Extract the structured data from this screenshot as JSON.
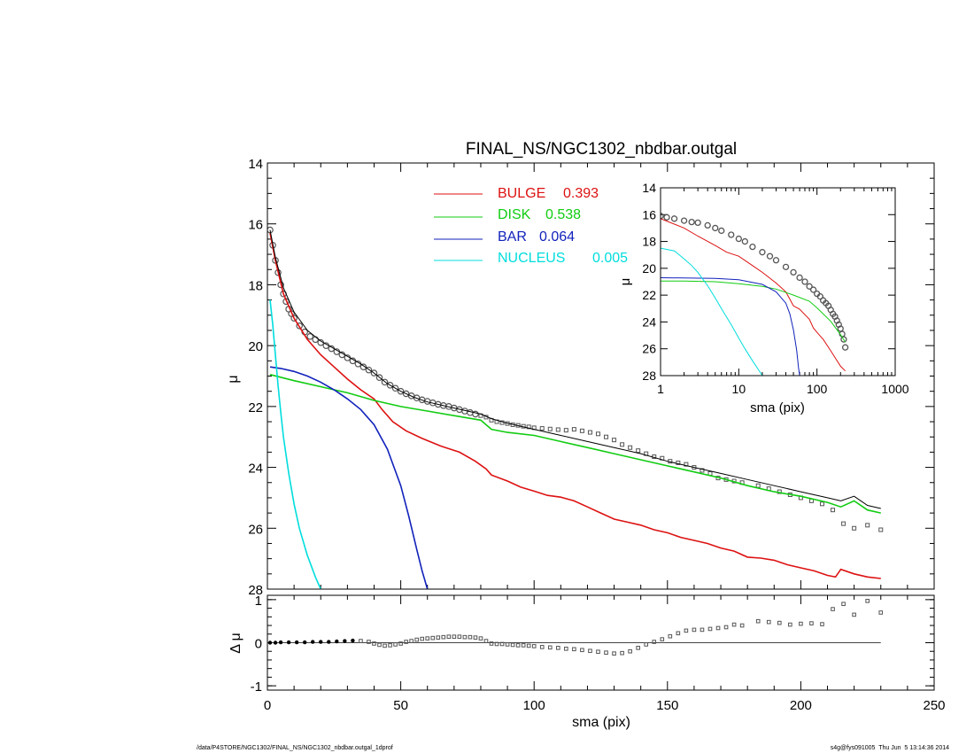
{
  "colors": {
    "axis": "#000000",
    "bulge": "#dd1111",
    "disk": "#11cc11",
    "bar": "#1122bb",
    "nucleus": "#00dddd",
    "total": "#000000",
    "obs": "#555555",
    "zero_line": "#444444"
  },
  "footer": {
    "left": "/data/P4STORE/NGC1302/FINAL_NS/NGC1302_nbdbar.outgal_1dprof",
    "right": "s4g@fys091005  Thu Jun  5 13:14:36 2014"
  },
  "chart_data": [
    {
      "id": "main",
      "type": "line",
      "title": "FINAL_NS/NGC1302_nbdbar.outgal",
      "xlabel": "",
      "ylabel": "μ",
      "xlim": [
        0,
        250
      ],
      "ylim": [
        28,
        14
      ],
      "ytick_labels": [
        "14",
        "16",
        "18",
        "20",
        "22",
        "24",
        "26",
        "28"
      ],
      "legend": [
        {
          "name": "BULGE",
          "value": "0.393",
          "color": "#dd1111"
        },
        {
          "name": "DISK",
          "value": "0.538",
          "color": "#11cc11"
        },
        {
          "name": "BAR",
          "value": "0.064",
          "color": "#1122bb"
        },
        {
          "name": "NUCLEUS",
          "value": "0.005",
          "color": "#00dddd"
        }
      ],
      "series": [
        {
          "name": "BULGE",
          "color": "#dd1111",
          "x": [
            1,
            3,
            6,
            10,
            15,
            20,
            25,
            30,
            35,
            40,
            43,
            47,
            52,
            58,
            65,
            72,
            78,
            82,
            84,
            90,
            95,
            100,
            105,
            110,
            115,
            120,
            125,
            130,
            135,
            140,
            145,
            150,
            155,
            160,
            165,
            170,
            175,
            180,
            185,
            190,
            195,
            200,
            205,
            210,
            213,
            215,
            220,
            225,
            230
          ],
          "y": [
            16.3,
            17.2,
            18.3,
            19.1,
            19.8,
            20.3,
            20.7,
            21.1,
            21.45,
            21.75,
            22.1,
            22.5,
            22.8,
            23.05,
            23.3,
            23.5,
            23.8,
            24.05,
            24.25,
            24.45,
            24.65,
            24.78,
            24.92,
            24.98,
            25.1,
            25.3,
            25.5,
            25.7,
            25.8,
            25.9,
            26.05,
            26.15,
            26.3,
            26.4,
            26.5,
            26.65,
            26.75,
            26.95,
            26.98,
            27.05,
            27.2,
            27.3,
            27.4,
            27.55,
            27.6,
            27.35,
            27.5,
            27.6,
            27.65
          ]
        },
        {
          "name": "DISK",
          "color": "#11cc11",
          "x": [
            1,
            10,
            20,
            30,
            40,
            50,
            60,
            70,
            80,
            82,
            84,
            90,
            100,
            110,
            120,
            130,
            140,
            150,
            160,
            170,
            180,
            190,
            200,
            210,
            215,
            220,
            225,
            230
          ],
          "y": [
            20.95,
            21.15,
            21.35,
            21.55,
            21.8,
            22.0,
            22.15,
            22.3,
            22.45,
            22.6,
            22.75,
            22.85,
            22.95,
            23.15,
            23.35,
            23.55,
            23.75,
            23.95,
            24.15,
            24.35,
            24.6,
            24.8,
            24.95,
            25.15,
            25.3,
            25.1,
            25.4,
            25.5
          ]
        },
        {
          "name": "BAR",
          "color": "#1122bb",
          "x": [
            1,
            5,
            10,
            15,
            20,
            25,
            30,
            35,
            40,
            45,
            50,
            53,
            56,
            58,
            60
          ],
          "y": [
            20.7,
            20.75,
            20.85,
            21.0,
            21.2,
            21.45,
            21.75,
            22.1,
            22.6,
            23.4,
            24.6,
            25.6,
            26.7,
            27.4,
            28.0
          ]
        },
        {
          "name": "NUCLEUS",
          "color": "#00dddd",
          "x": [
            1,
            2,
            3,
            4,
            5,
            6,
            8,
            10,
            12,
            15,
            18,
            20
          ],
          "y": [
            18.5,
            19.3,
            20.3,
            21.3,
            22.2,
            23.0,
            24.2,
            25.2,
            26.0,
            26.9,
            27.6,
            28.0
          ]
        },
        {
          "name": "TOTAL",
          "color": "#000000",
          "x": [
            1,
            3,
            6,
            10,
            15,
            20,
            25,
            30,
            35,
            40,
            45,
            50,
            55,
            60,
            65,
            70,
            75,
            80,
            84,
            90,
            100,
            110,
            120,
            130,
            140,
            150,
            160,
            170,
            180,
            190,
            200,
            210,
            215,
            220,
            225,
            230
          ],
          "y": [
            16.2,
            17.1,
            18.1,
            18.9,
            19.5,
            19.85,
            20.1,
            20.35,
            20.6,
            20.9,
            21.25,
            21.5,
            21.7,
            21.85,
            21.95,
            22.05,
            22.15,
            22.25,
            22.4,
            22.55,
            22.75,
            22.95,
            23.15,
            23.35,
            23.55,
            23.8,
            24.0,
            24.2,
            24.4,
            24.6,
            24.8,
            25.0,
            25.1,
            24.95,
            25.25,
            25.35
          ]
        }
      ],
      "observed": {
        "x": [
          1,
          2,
          3,
          4,
          5,
          6,
          7,
          8,
          9,
          10,
          12,
          14,
          16,
          18,
          20,
          22,
          24,
          26,
          28,
          30,
          32,
          34,
          36,
          38,
          40,
          42,
          44,
          46,
          48,
          50,
          52,
          54,
          56,
          58,
          60,
          62,
          64,
          66,
          68,
          70,
          72,
          74,
          76,
          78,
          80,
          82,
          84,
          86,
          88,
          90,
          92,
          94,
          96,
          98,
          100,
          103,
          106,
          109,
          112,
          115,
          118,
          121,
          124,
          127,
          130,
          133,
          136,
          139,
          142,
          145,
          148,
          151,
          154,
          157,
          160,
          163,
          166,
          169,
          172,
          175,
          178,
          184,
          188,
          192,
          196,
          200,
          204,
          208,
          212,
          216,
          220,
          225,
          230
        ],
        "y": [
          16.2,
          16.7,
          17.2,
          17.6,
          18.0,
          18.3,
          18.55,
          18.8,
          18.95,
          19.1,
          19.35,
          19.55,
          19.7,
          19.8,
          19.9,
          20.0,
          20.1,
          20.2,
          20.3,
          20.4,
          20.5,
          20.6,
          20.7,
          20.8,
          20.9,
          21.05,
          21.2,
          21.3,
          21.4,
          21.5,
          21.58,
          21.65,
          21.72,
          21.78,
          21.83,
          21.88,
          21.93,
          21.97,
          22.0,
          22.05,
          22.1,
          22.15,
          22.2,
          22.25,
          22.3,
          22.35,
          22.45,
          22.5,
          22.53,
          22.56,
          22.6,
          22.62,
          22.65,
          22.67,
          22.7,
          22.72,
          22.74,
          22.76,
          22.78,
          22.75,
          22.8,
          22.85,
          22.9,
          23.0,
          23.1,
          23.25,
          23.35,
          23.45,
          23.55,
          23.65,
          23.7,
          23.8,
          23.85,
          23.9,
          24.0,
          24.1,
          24.2,
          24.35,
          24.4,
          24.45,
          24.5,
          24.6,
          24.7,
          24.8,
          24.9,
          25.0,
          25.1,
          25.2,
          25.4,
          25.85,
          26.0,
          25.9,
          26.05
        ]
      }
    },
    {
      "id": "residual",
      "type": "scatter",
      "xlabel": "sma (pix)",
      "ylabel": "Δ μ",
      "xlim": [
        0,
        250
      ],
      "ylim": [
        -1.1,
        1.1
      ],
      "xtick_labels": [
        "0",
        "50",
        "100",
        "150",
        "200",
        "250"
      ],
      "ytick_labels": [
        "1",
        "0",
        "-1"
      ],
      "residual": {
        "x": [
          1,
          3,
          5,
          8,
          11,
          14,
          17,
          20,
          23,
          26,
          29,
          32,
          35,
          38,
          40,
          42,
          44,
          46,
          48,
          50,
          52,
          54,
          56,
          58,
          60,
          62,
          64,
          66,
          68,
          70,
          72,
          74,
          76,
          78,
          80,
          82,
          84,
          86,
          88,
          90,
          92,
          94,
          96,
          98,
          100,
          103,
          106,
          109,
          112,
          115,
          118,
          121,
          124,
          127,
          130,
          133,
          136,
          139,
          142,
          145,
          148,
          151,
          154,
          157,
          160,
          163,
          166,
          169,
          172,
          175,
          178,
          184,
          188,
          192,
          196,
          200,
          204,
          208,
          212,
          216,
          220,
          225,
          230
        ],
        "y": [
          0.0,
          0.0,
          0.01,
          0.01,
          0.01,
          0.01,
          0.02,
          0.02,
          0.02,
          0.03,
          0.04,
          0.05,
          0.04,
          0.02,
          -0.02,
          -0.05,
          -0.07,
          -0.06,
          -0.04,
          -0.02,
          0.02,
          0.04,
          0.07,
          0.09,
          0.1,
          0.11,
          0.12,
          0.13,
          0.14,
          0.14,
          0.14,
          0.13,
          0.13,
          0.12,
          0.1,
          0.04,
          -0.02,
          -0.03,
          -0.03,
          -0.04,
          -0.05,
          -0.06,
          -0.06,
          -0.07,
          -0.08,
          -0.1,
          -0.11,
          -0.12,
          -0.14,
          -0.15,
          -0.17,
          -0.19,
          -0.21,
          -0.23,
          -0.25,
          -0.24,
          -0.2,
          -0.12,
          -0.04,
          0.02,
          0.08,
          0.15,
          0.22,
          0.28,
          0.3,
          0.3,
          0.32,
          0.34,
          0.36,
          0.42,
          0.4,
          0.5,
          0.48,
          0.46,
          0.42,
          0.44,
          0.45,
          0.43,
          0.78,
          0.9,
          0.65,
          0.97,
          0.7
        ]
      }
    },
    {
      "id": "inset",
      "type": "line",
      "xscale": "log",
      "xlabel": "sma (pix)",
      "ylabel": "μ",
      "xlim": [
        1,
        1000
      ],
      "ylim": [
        28,
        14
      ],
      "xtick_labels": [
        "1",
        "10",
        "100",
        "1000"
      ],
      "ytick_labels": [
        "14",
        "16",
        "18",
        "20",
        "22",
        "24",
        "26",
        "28"
      ],
      "series": [
        {
          "name": "BULGE",
          "color": "#dd1111",
          "x": [
            1,
            2,
            3,
            5,
            7,
            10,
            15,
            20,
            30,
            40,
            50,
            60,
            80,
            90,
            100,
            120,
            150,
            200,
            230
          ],
          "y": [
            16.3,
            17.0,
            17.6,
            18.3,
            18.8,
            19.1,
            19.8,
            20.3,
            21.1,
            21.75,
            22.8,
            23.05,
            23.8,
            24.45,
            24.78,
            25.3,
            26.15,
            27.3,
            27.65
          ]
        },
        {
          "name": "DISK",
          "color": "#11cc11",
          "x": [
            1,
            2,
            5,
            10,
            20,
            30,
            50,
            80,
            100,
            150,
            200,
            230
          ],
          "y": [
            20.95,
            20.95,
            21.0,
            21.15,
            21.35,
            21.55,
            22.0,
            22.45,
            22.95,
            23.95,
            24.95,
            25.5
          ]
        },
        {
          "name": "BAR",
          "color": "#1122bb",
          "x": [
            1,
            5,
            10,
            20,
            30,
            40,
            45,
            50,
            55,
            58,
            60
          ],
          "y": [
            20.7,
            20.75,
            20.85,
            21.2,
            21.75,
            22.6,
            23.4,
            24.6,
            26.1,
            27.4,
            28.0
          ]
        },
        {
          "name": "NUCLEUS",
          "color": "#00dddd",
          "x": [
            1,
            1.5,
            2,
            2.5,
            3,
            4,
            5,
            6,
            8,
            10,
            12,
            15,
            18,
            20
          ],
          "y": [
            18.5,
            18.7,
            19.3,
            19.8,
            20.3,
            21.3,
            22.2,
            23.0,
            24.2,
            25.2,
            26.0,
            26.9,
            27.6,
            28.0
          ]
        }
      ],
      "observed": {
        "x": [
          1,
          1.2,
          1.5,
          2,
          2.5,
          3,
          4,
          5,
          6,
          8,
          10,
          12,
          15,
          20,
          25,
          30,
          40,
          50,
          60,
          70,
          80,
          90,
          100,
          110,
          120,
          130,
          140,
          150,
          160,
          170,
          180,
          190,
          200,
          210,
          220,
          230
        ],
        "y": [
          16.1,
          16.2,
          16.3,
          16.45,
          16.55,
          16.6,
          16.8,
          17.0,
          17.2,
          17.5,
          17.8,
          18.0,
          18.4,
          18.8,
          19.1,
          19.4,
          19.9,
          20.3,
          20.7,
          21.0,
          21.35,
          21.6,
          21.9,
          22.1,
          22.4,
          22.6,
          22.8,
          23.1,
          23.4,
          23.6,
          23.9,
          24.2,
          24.5,
          24.9,
          25.3,
          25.9
        ]
      }
    }
  ]
}
